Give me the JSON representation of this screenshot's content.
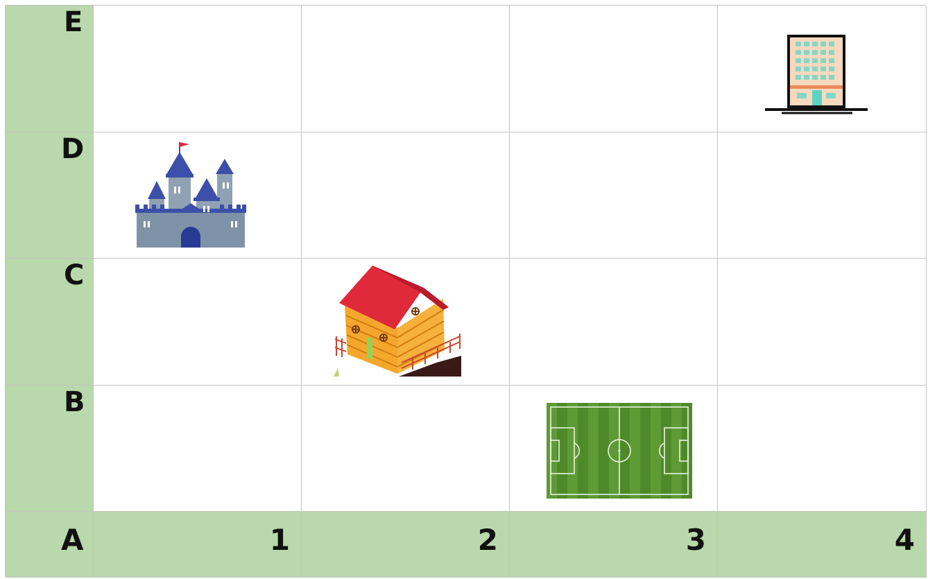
{
  "row_labels": [
    "E",
    "D",
    "C",
    "B"
  ],
  "corner_label": "A",
  "col_labels": [
    "1",
    "2",
    "3",
    "4"
  ],
  "pictures": [
    {
      "name": "office-building",
      "row": "E",
      "col": "4"
    },
    {
      "name": "castle",
      "row": "D",
      "col": "1"
    },
    {
      "name": "house",
      "row": "C",
      "col": "2"
    },
    {
      "name": "football-field",
      "row": "B",
      "col": "3"
    }
  ],
  "colors": {
    "label_green": "#b9d8ab",
    "grid_line": "#c4c4c4",
    "castle_blue": "#3d4fa8",
    "castle_stone": "#8fa1b3",
    "roof_red": "#e0293b",
    "house_orange": "#f4a72c",
    "field_green": "#4f8a2a"
  }
}
